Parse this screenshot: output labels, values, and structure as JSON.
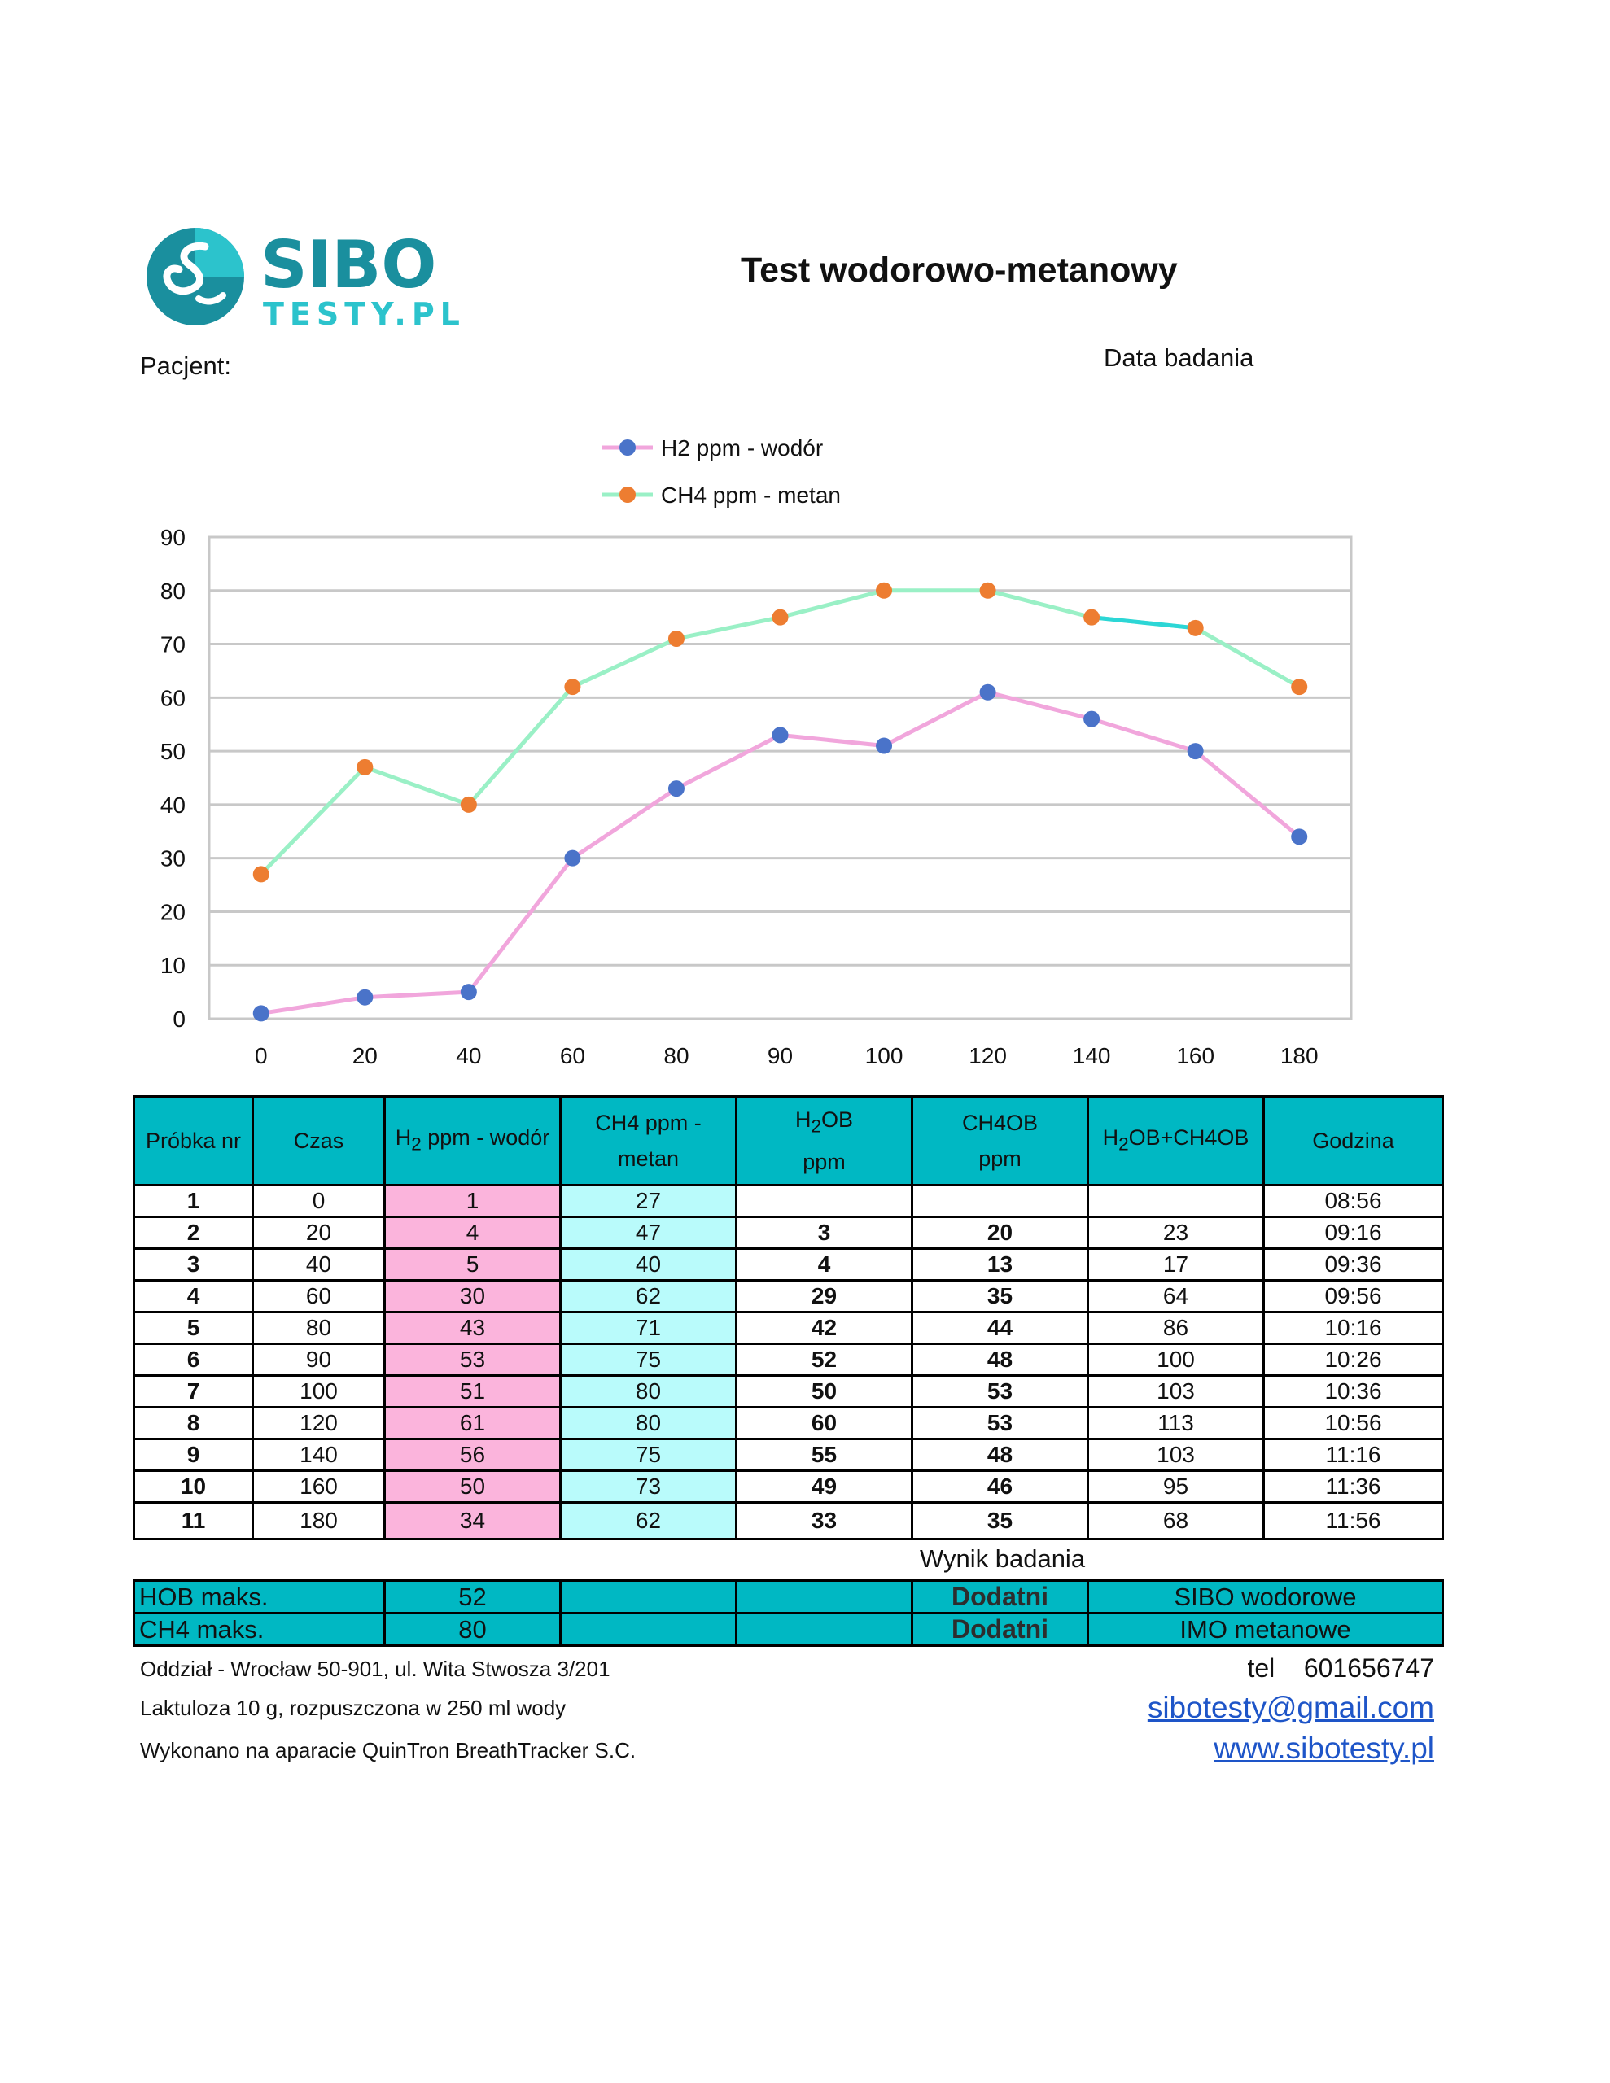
{
  "header": {
    "logo_main": "SIBO",
    "logo_sub": "TESTY.PL",
    "title": "Test wodorowo-metanowy",
    "patient_label": "Pacjent:",
    "date_label": "Data badania"
  },
  "colors": {
    "teal": "#00b8c3",
    "h2_line": "#f1a6dc",
    "h2_marker": "#4a73c9",
    "ch4_line": "#9af0c6",
    "ch4_marker": "#ed7d31",
    "ch4_segment_highlight": "#2cd6d6",
    "h2_cell": "#fbb4dc",
    "ch4_cell": "#b9fbfb",
    "link": "#1e55c8"
  },
  "chart_data": {
    "type": "line",
    "categories": [
      "0",
      "20",
      "40",
      "60",
      "80",
      "90",
      "100",
      "120",
      "140",
      "160",
      "180"
    ],
    "series": [
      {
        "name": "H2 ppm - wodór",
        "values": [
          1,
          4,
          5,
          30,
          43,
          53,
          51,
          61,
          56,
          50,
          34
        ]
      },
      {
        "name": "CH4 ppm - metan",
        "values": [
          27,
          47,
          40,
          62,
          71,
          75,
          80,
          80,
          75,
          73,
          62
        ]
      }
    ],
    "ylim": [
      0,
      90
    ],
    "yticks": [
      0,
      10,
      20,
      30,
      40,
      50,
      60,
      70,
      80,
      90
    ],
    "grid": true,
    "legend": "top-center"
  },
  "table": {
    "headers": {
      "sample": "Próbka nr",
      "time": "Czas",
      "h2_main": "H",
      "h2_sub": "2",
      "h2_rest": " ppm - wodór",
      "ch4_line1": "CH4 ppm -",
      "ch4_line2": "metan",
      "h2ob_a": "H",
      "h2ob_sub": "2",
      "h2ob_b": "OB",
      "h2ob_line2": "ppm",
      "ch4ob_line1": "CH4OB",
      "ch4ob_line2": "ppm",
      "sum_a": "H",
      "sum_sub": "2",
      "sum_b": "OB+CH4OB",
      "hour": "Godzina"
    },
    "rows": [
      {
        "nr": "1",
        "czas": "0",
        "h2": "1",
        "ch4": "27",
        "h2ob": "",
        "ch4ob": "",
        "sum": "",
        "hour": "08:56"
      },
      {
        "nr": "2",
        "czas": "20",
        "h2": "4",
        "ch4": "47",
        "h2ob": "3",
        "ch4ob": "20",
        "sum": "23",
        "hour": "09:16"
      },
      {
        "nr": "3",
        "czas": "40",
        "h2": "5",
        "ch4": "40",
        "h2ob": "4",
        "ch4ob": "13",
        "sum": "17",
        "hour": "09:36"
      },
      {
        "nr": "4",
        "czas": "60",
        "h2": "30",
        "ch4": "62",
        "h2ob": "29",
        "ch4ob": "35",
        "sum": "64",
        "hour": "09:56"
      },
      {
        "nr": "5",
        "czas": "80",
        "h2": "43",
        "ch4": "71",
        "h2ob": "42",
        "ch4ob": "44",
        "sum": "86",
        "hour": "10:16"
      },
      {
        "nr": "6",
        "czas": "90",
        "h2": "53",
        "ch4": "75",
        "h2ob": "52",
        "ch4ob": "48",
        "sum": "100",
        "hour": "10:26"
      },
      {
        "nr": "7",
        "czas": "100",
        "h2": "51",
        "ch4": "80",
        "h2ob": "50",
        "ch4ob": "53",
        "sum": "103",
        "hour": "10:36"
      },
      {
        "nr": "8",
        "czas": "120",
        "h2": "61",
        "ch4": "80",
        "h2ob": "60",
        "ch4ob": "53",
        "sum": "113",
        "hour": "10:56"
      },
      {
        "nr": "9",
        "czas": "140",
        "h2": "56",
        "ch4": "75",
        "h2ob": "55",
        "ch4ob": "48",
        "sum": "103",
        "hour": "11:16"
      },
      {
        "nr": "10",
        "czas": "160",
        "h2": "50",
        "ch4": "73",
        "h2ob": "49",
        "ch4ob": "46",
        "sum": "95",
        "hour": "11:36"
      },
      {
        "nr": "11",
        "czas": "180",
        "h2": "34",
        "ch4": "62",
        "h2ob": "33",
        "ch4ob": "35",
        "sum": "68",
        "hour": "11:56"
      }
    ]
  },
  "result": {
    "caption": "Wynik badania",
    "rows": [
      {
        "label": "HOB maks.",
        "value": "52",
        "status": "Dodatni",
        "diagnosis": "SIBO wodorowe"
      },
      {
        "label": "CH4 maks.",
        "value": "80",
        "status": "Dodatni",
        "diagnosis": "IMO metanowe"
      }
    ]
  },
  "footer": {
    "address": "Oddział - Wrocław 50-901, ul. Wita Stwosza 3/201",
    "lactulose": "Laktuloza 10 g, rozpuszczona w 250 ml wody",
    "device": "Wykonano na aparacie QuinTron BreathTracker S.C.",
    "tel_label": "tel",
    "tel_number": "601656747",
    "email": "sibotesty@gmail.com",
    "website": "www.sibotesty.pl"
  }
}
